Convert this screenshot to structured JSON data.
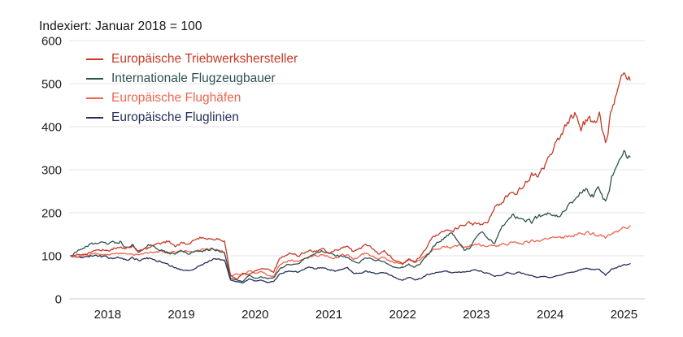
{
  "chart_data": {
    "type": "line",
    "title": "Indexiert: Januar 2018 = 100",
    "x_tick_labels": [
      "2018",
      "2019",
      "2020",
      "2021",
      "2022",
      "2023",
      "2024",
      "2025"
    ],
    "y_ticks": [
      0,
      100,
      200,
      300,
      400,
      500,
      600
    ],
    "ylim": [
      0,
      600
    ],
    "x_range_months": [
      "2018-01",
      "2025-08"
    ],
    "grid": true,
    "legend_position": "top-left",
    "series": [
      {
        "id": "triebwerkshersteller",
        "name": "Europäische Triebwerkshersteller",
        "color": "#c43a26",
        "monthly_values": [
          100,
          104,
          102,
          107,
          112,
          115,
          112,
          117,
          121,
          116,
          123,
          110,
          115,
          122,
          126,
          131,
          135,
          123,
          129,
          127,
          136,
          141,
          138,
          140,
          141,
          136,
          55,
          45,
          60,
          55,
          66,
          72,
          68,
          62,
          95,
          104,
          106,
          100,
          108,
          112,
          110,
          116,
          108,
          112,
          118,
          124,
          110,
          116,
          126,
          118,
          105,
          112,
          98,
          88,
          80,
          92,
          86,
          100,
          122,
          145,
          150,
          162,
          153,
          165,
          170,
          175,
          172,
          171,
          180,
          209,
          226,
          242,
          240,
          255,
          270,
          290,
          284,
          305,
          330,
          368,
          385,
          411,
          425,
          400,
          415,
          408,
          430,
          355,
          440,
          480,
          518,
          508
        ]
      },
      {
        "id": "flugzeugbauer",
        "name": "Internationale Flugzeugbauer",
        "color": "#2f5251",
        "monthly_values": [
          100,
          112,
          120,
          126,
          130,
          133,
          126,
          130,
          133,
          120,
          126,
          111,
          121,
          127,
          117,
          114,
          105,
          107,
          111,
          105,
          109,
          107,
          114,
          117,
          114,
          108,
          46,
          44,
          41,
          54,
          49,
          51,
          47,
          49,
          69,
          77,
          80,
          82,
          91,
          99,
          105,
          110,
          104,
          101,
          99,
          95,
          87,
          85,
          95,
          91,
          88,
          84,
          77,
          72,
          74,
          80,
          72,
          84,
          100,
          120,
          132,
          145,
          157,
          135,
          115,
          118,
          140,
          157,
          140,
          128,
          160,
          185,
          198,
          186,
          180,
          179,
          190,
          198,
          204,
          192,
          200,
          215,
          230,
          250,
          252,
          240,
          255,
          224,
          280,
          305,
          335,
          330
        ]
      },
      {
        "id": "flughaefen",
        "name": "Europäische Flughäfen",
        "color": "#ee654e",
        "monthly_values": [
          100,
          99,
          101,
          103,
          104,
          102,
          105,
          104,
          106,
          102,
          105,
          102,
          105,
          107,
          109,
          111,
          108,
          110,
          112,
          109,
          112,
          114,
          115,
          116,
          114,
          110,
          52,
          58,
          55,
          65,
          60,
          63,
          55,
          52,
          80,
          88,
          90,
          86,
          92,
          96,
          100,
          104,
          98,
          95,
          100,
          104,
          92,
          98,
          106,
          100,
          92,
          96,
          88,
          84,
          82,
          90,
          84,
          92,
          104,
          112,
          118,
          122,
          119,
          123,
          120,
          124,
          127,
          124,
          122,
          120,
          125,
          128,
          130,
          128,
          132,
          134,
          133,
          136,
          140,
          142,
          143,
          146,
          148,
          152,
          153,
          151,
          150,
          139,
          153,
          158,
          164,
          170
        ]
      },
      {
        "id": "fluglinien",
        "name": "Europäische Fluglinien",
        "color": "#252e58",
        "monthly_values": [
          100,
          99,
          97,
          99,
          101,
          98,
          96,
          94,
          97,
          91,
          94,
          90,
          93,
          95,
          90,
          85,
          78,
          72,
          68,
          66,
          70,
          76,
          85,
          91,
          94,
          90,
          44,
          40,
          38,
          46,
          41,
          43,
          38,
          41,
          58,
          63,
          65,
          62,
          70,
          73,
          70,
          74,
          68,
          65,
          68,
          71,
          58,
          60,
          64,
          61,
          58,
          61,
          55,
          48,
          43,
          50,
          44,
          48,
          56,
          60,
          62,
          66,
          59,
          61,
          63,
          66,
          68,
          63,
          58,
          52,
          56,
          60,
          58,
          61,
          57,
          53,
          50,
          52,
          49,
          54,
          57,
          61,
          65,
          67,
          70,
          68,
          69,
          55,
          68,
          74,
          78,
          82
        ]
      }
    ],
    "style": {
      "gridline_color": "#e6e6e6",
      "zeroline_color": "#c9c9c9",
      "tick_label_color": "#1a1a1a",
      "background": "#ffffff"
    }
  }
}
